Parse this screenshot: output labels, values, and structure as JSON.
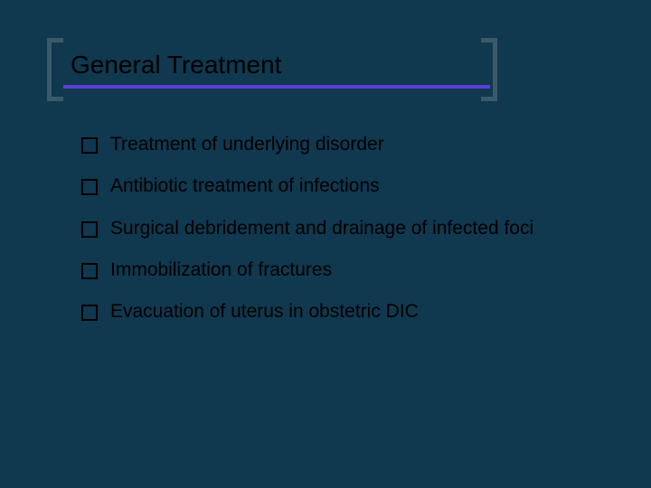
{
  "slide": {
    "title": "General Treatment",
    "background_color": "#10384f",
    "underline_color": "#5a3fd6",
    "bracket_color": "#3a5a6a",
    "text_color": "#000000",
    "title_fontsize": 28,
    "bullet_fontsize": 21,
    "bullets": [
      "Treatment of underlying disorder",
      "Antibiotic treatment of infections",
      "Surgical debridement and drainage of infected foci",
      "Immobilization of fractures",
      "Evacuation of uterus in obstetric DIC"
    ]
  }
}
